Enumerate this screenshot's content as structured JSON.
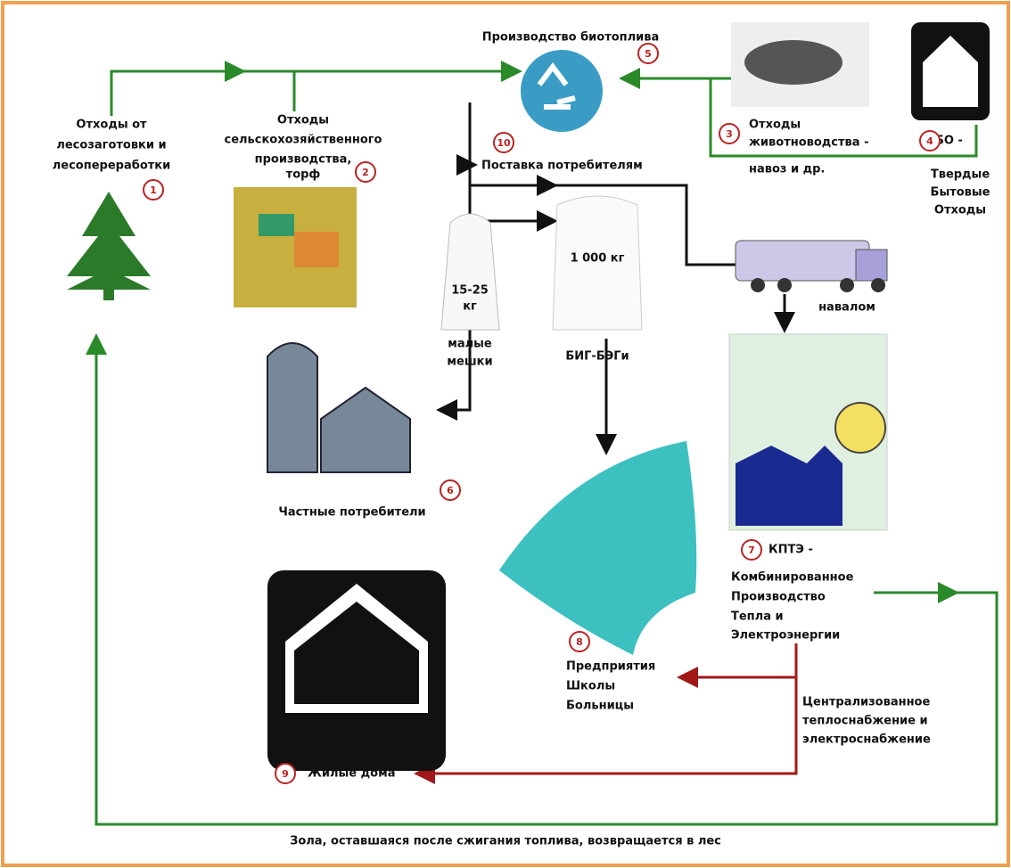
{
  "hub": {
    "title": "Производство биотоплива",
    "number": 5
  },
  "sources": [
    {
      "number": 1,
      "lines": [
        "Отходы от",
        "лесозаготовки и",
        "лесопереработки"
      ]
    },
    {
      "number": 2,
      "lines": [
        "Отходы",
        "сельскохозяйственного",
        "производства,",
        "торф"
      ]
    },
    {
      "number": 3,
      "lines": [
        "Отходы",
        "животноводства -",
        "навоз и др."
      ]
    },
    {
      "number": 4,
      "lines": [
        "ТБО -",
        "Твердые",
        "Бытовые",
        "Отходы"
      ]
    }
  ],
  "delivery": {
    "number": 10,
    "label": "Поставка потребителям"
  },
  "small_bags": {
    "weight": [
      "15-25",
      "кг"
    ],
    "lines": [
      "малые",
      "мешки"
    ]
  },
  "big_bags": {
    "weight": "1 000 кг",
    "label": "БИГ-БЭГи"
  },
  "bulk": "навалом",
  "consumers": [
    {
      "number": 6,
      "lines": [
        "Частные потребители"
      ]
    },
    {
      "number": 7,
      "lines": [
        "КПТЭ -",
        "Комбинированное",
        "Производство",
        "Тепла и",
        "Электроэнергии"
      ]
    },
    {
      "number": 8,
      "lines": [
        "Предприятия",
        "Школы",
        "Больницы"
      ]
    },
    {
      "number": 9,
      "lines": [
        "Жилые дома"
      ]
    }
  ],
  "central_supply": [
    "Централизованное",
    "теплоснабжение  и",
    "электроснабжение"
  ],
  "ash_note": "Зола, оставшаяся после сжигания топлива, возвращается в лес"
}
